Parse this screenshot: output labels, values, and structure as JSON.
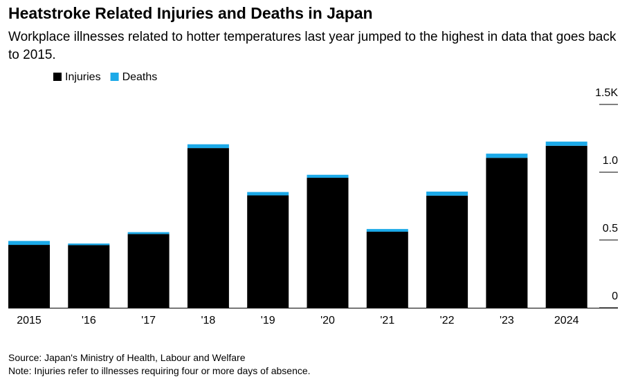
{
  "chart_data": {
    "type": "stacked_bar",
    "title": "Heatstroke Related Injuries and Deaths in Japan",
    "subtitle": "Workplace illnesses related to hotter temperatures last year jumped to the highest in data that goes back to 2015.",
    "categories": [
      "2015",
      "'16",
      "'17",
      "'18",
      "'19",
      "'20",
      "'21",
      "'22",
      "'23",
      "2024"
    ],
    "series": [
      {
        "name": "Injuries",
        "color": "#000000",
        "values": [
          0.464,
          0.462,
          0.544,
          1.178,
          0.829,
          0.959,
          0.561,
          0.827,
          1.106,
          1.195
        ]
      },
      {
        "name": "Deaths",
        "color": "#1ba9e8",
        "values": [
          0.029,
          0.012,
          0.014,
          0.028,
          0.025,
          0.022,
          0.02,
          0.03,
          0.031,
          0.031
        ]
      }
    ],
    "ylim": [
      0,
      1.5
    ],
    "yticks": [
      0,
      0.5,
      {
        "value": 1,
        "label": "1.0"
      },
      {
        "value": 1.5,
        "label": "1.5K"
      }
    ],
    "source": "Source: Japan's Ministry of Health, Labour and Welfare",
    "note": "Note: Injuries refer to illnesses requiring four or more days of absence."
  }
}
